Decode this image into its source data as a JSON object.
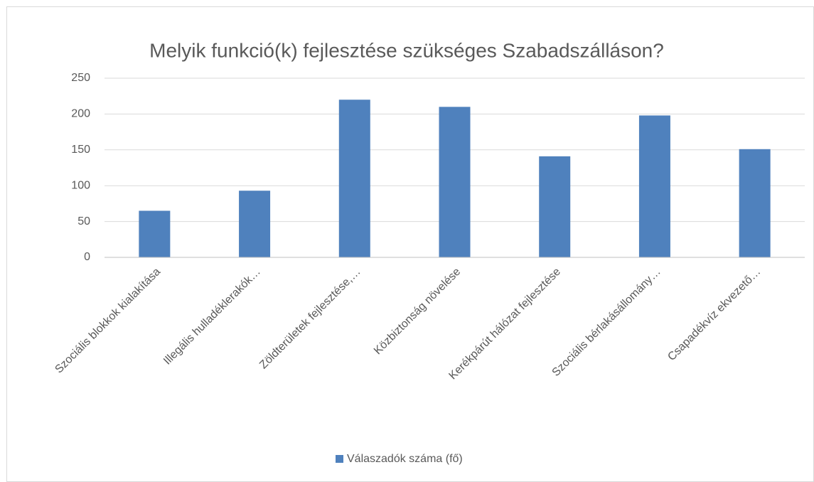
{
  "chart_data": {
    "type": "bar",
    "title": "Melyik funkció(k) fejlesztése szükséges Szabadszálláson?",
    "categories": [
      "Szociális blokkok kialakítása",
      "Illegális hulladéklerakók…",
      "Zöldterületek fejlesztése,…",
      "Közbiztonság növelése",
      "Kerékpárút hálózat fejlesztése",
      "Szociális bérlakásállomány…",
      "Csapadékvíz ekvezető…"
    ],
    "series": [
      {
        "name": "Válaszadók száma (fő)",
        "color": "#4f81bd",
        "values": [
          65,
          93,
          220,
          210,
          141,
          198,
          151
        ]
      }
    ],
    "ylim": [
      0,
      250
    ],
    "yticks": [
      0,
      50,
      100,
      150,
      200,
      250
    ],
    "grid": true,
    "legend": "bottom"
  }
}
